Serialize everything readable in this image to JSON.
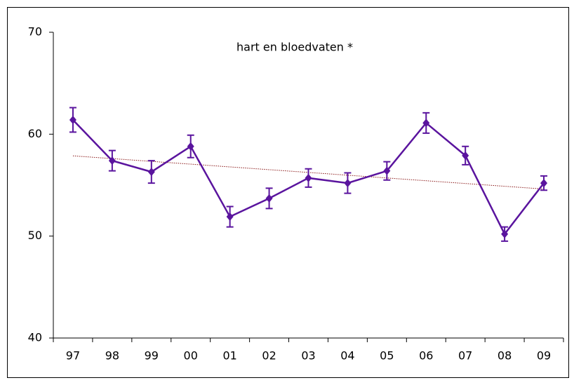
{
  "chart_data": {
    "type": "line",
    "title": "hart en bloedvaten *",
    "categories": [
      "97",
      "98",
      "99",
      "00",
      "01",
      "02",
      "03",
      "04",
      "05",
      "06",
      "07",
      "08",
      "09"
    ],
    "series": [
      {
        "color": "#5a149e",
        "values": [
          61.4,
          57.4,
          56.3,
          58.8,
          51.9,
          53.7,
          55.7,
          55.2,
          56.4,
          61.1,
          57.9,
          50.2,
          55.2
        ],
        "errors": [
          1.2,
          1.0,
          1.1,
          1.1,
          1.0,
          1.0,
          0.9,
          1.0,
          0.9,
          1.0,
          0.9,
          0.7,
          0.7
        ]
      }
    ],
    "trendline": {
      "type": "linear",
      "color": "#8b1a1a"
    },
    "ylim": [
      40,
      70
    ],
    "yticks": [
      40,
      50,
      60,
      70
    ]
  }
}
